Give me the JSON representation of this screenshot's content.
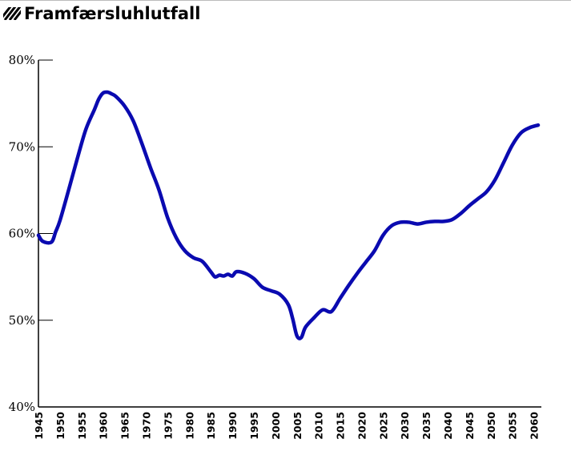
{
  "header": {
    "title": "Framfærsluhlutfall",
    "icon": "hatched-square-icon"
  },
  "chart_data": {
    "type": "line",
    "title": "Framfærsluhlutfall",
    "xlabel": "",
    "ylabel": "",
    "xlim": [
      1945,
      2061
    ],
    "ylim": [
      40,
      80
    ],
    "yticks": [
      40,
      50,
      60,
      70,
      80
    ],
    "ytick_labels": [
      "40%",
      "50%",
      "60%",
      "70%",
      "80%"
    ],
    "xticks": [
      1945,
      1950,
      1955,
      1960,
      1965,
      1970,
      1975,
      1980,
      1985,
      1990,
      1995,
      2000,
      2005,
      2010,
      2015,
      2020,
      2025,
      2030,
      2035,
      2040,
      2045,
      2050,
      2055,
      2060
    ],
    "grid": false,
    "line_color": "#0a0ab0",
    "series": [
      {
        "name": "",
        "x": [
          1945,
          1946,
          1948,
          1949,
          1950,
          1952,
          1954,
          1956,
          1958,
          1959,
          1960,
          1961,
          1962,
          1963,
          1965,
          1967,
          1969,
          1971,
          1973,
          1975,
          1977,
          1979,
          1981,
          1983,
          1985,
          1986,
          1987,
          1988,
          1989,
          1990,
          1991,
          1993,
          1995,
          1997,
          1999,
          2001,
          2003,
          2004,
          2005,
          2006,
          2007,
          2009,
          2011,
          2013,
          2015,
          2017,
          2019,
          2021,
          2023,
          2025,
          2027,
          2029,
          2031,
          2033,
          2035,
          2037,
          2039,
          2041,
          2043,
          2045,
          2047,
          2049,
          2051,
          2053,
          2055,
          2057,
          2059,
          2061
        ],
        "y": [
          59.8,
          59.1,
          59.0,
          60.2,
          61.5,
          65.0,
          68.6,
          72.0,
          74.3,
          75.5,
          76.2,
          76.3,
          76.1,
          75.8,
          74.7,
          73.0,
          70.4,
          67.6,
          65.0,
          61.8,
          59.5,
          58.0,
          57.2,
          56.8,
          55.6,
          55.0,
          55.2,
          55.1,
          55.3,
          55.1,
          55.6,
          55.4,
          54.8,
          53.8,
          53.4,
          53.0,
          51.8,
          50.2,
          48.2,
          48.0,
          49.2,
          50.3,
          51.2,
          51.0,
          52.5,
          54.0,
          55.4,
          56.7,
          58.0,
          59.8,
          60.9,
          61.3,
          61.3,
          61.1,
          61.3,
          61.4,
          61.4,
          61.6,
          62.3,
          63.2,
          64.0,
          64.8,
          66.2,
          68.2,
          70.2,
          71.6,
          72.2,
          72.5
        ]
      }
    ]
  }
}
